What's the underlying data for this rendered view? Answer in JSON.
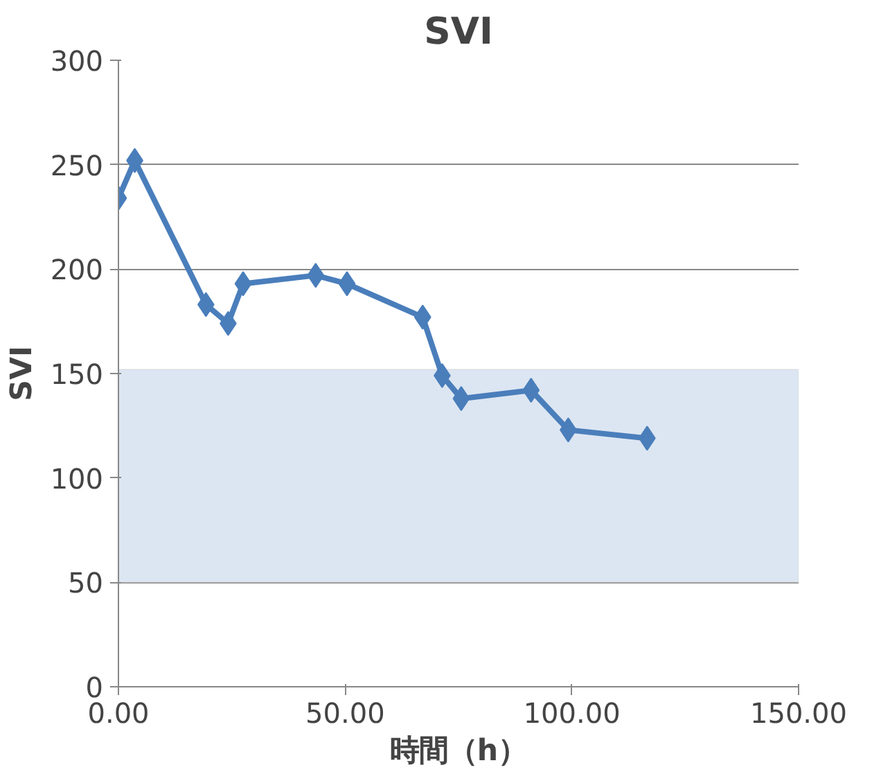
{
  "chart_data": {
    "type": "line",
    "title": "SVI",
    "xlabel": "時間（h）",
    "ylabel": "SVI",
    "x": [
      0,
      3.6,
      19.3,
      24.2,
      27.5,
      43.5,
      50.4,
      67.1,
      71.4,
      75.6,
      91,
      99.2,
      116.6
    ],
    "series": [
      {
        "color": "#4a7ebb",
        "values": [
          234,
          252,
          183,
          174,
          193,
          197,
          193,
          177,
          149,
          138,
          142,
          123,
          119
        ]
      }
    ],
    "xlim": [
      0,
      150
    ],
    "xticks": [
      {
        "value": 0,
        "label": "0.00"
      },
      {
        "value": 50,
        "label": "50.00"
      },
      {
        "value": 100,
        "label": "100.00"
      },
      {
        "value": 150,
        "label": "150.00"
      }
    ],
    "ylim": [
      0,
      300
    ],
    "yticks": [
      0,
      50,
      100,
      150,
      200,
      250,
      300
    ],
    "bands": [
      {
        "axis": "y",
        "from": 50,
        "to": 152,
        "color": "#dce6f2"
      }
    ],
    "grid": "y",
    "marker": "diamond",
    "line_style": "solid"
  }
}
